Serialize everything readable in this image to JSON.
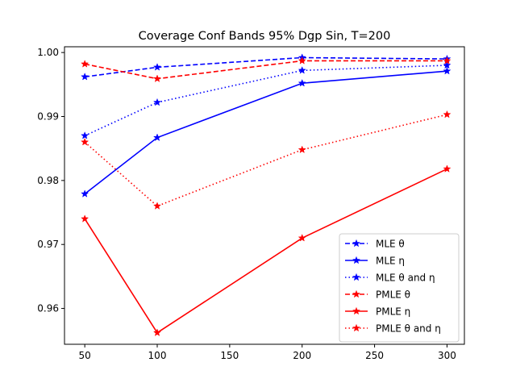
{
  "chart_data": {
    "type": "line",
    "title": "Coverage Conf Bands 95% Dgp Sin, T=200",
    "xlabel": "",
    "ylabel": "",
    "x": [
      50,
      100,
      200,
      300
    ],
    "xlim": [
      36,
      312
    ],
    "ylim": [
      0.9544,
      1.0009
    ],
    "xticks": [
      50,
      100,
      150,
      200,
      250,
      300
    ],
    "yticks": [
      0.96,
      0.97,
      0.98,
      0.99,
      1.0
    ],
    "ytick_labels": [
      "0.96",
      "0.97",
      "0.98",
      "0.99",
      "1.00"
    ],
    "grid": false,
    "legend_position": "lower-right",
    "series": [
      {
        "name": "MLE  θ",
        "color": "#0000ff",
        "linestyle": "dashed",
        "marker": "star",
        "values": [
          0.9962,
          0.9977,
          0.9992,
          0.999
        ]
      },
      {
        "name": "MLE  η",
        "color": "#0000ff",
        "linestyle": "solid",
        "marker": "star",
        "values": [
          0.9779,
          0.9867,
          0.9952,
          0.9971
        ]
      },
      {
        "name": "MLE  θ and η",
        "color": "#0000ff",
        "linestyle": "dotted",
        "marker": "star",
        "values": [
          0.987,
          0.9922,
          0.9972,
          0.998
        ]
      },
      {
        "name": "PMLE  θ",
        "color": "#ff0000",
        "linestyle": "dashed",
        "marker": "star",
        "values": [
          0.9982,
          0.9959,
          0.9987,
          0.9987
        ]
      },
      {
        "name": "PMLE  η",
        "color": "#ff0000",
        "linestyle": "solid",
        "marker": "star",
        "values": [
          0.974,
          0.9562,
          0.971,
          0.9818
        ]
      },
      {
        "name": "PMLE  θ and η",
        "color": "#ff0000",
        "linestyle": "dotted",
        "marker": "star",
        "values": [
          0.986,
          0.976,
          0.9848,
          0.9903
        ]
      }
    ]
  }
}
